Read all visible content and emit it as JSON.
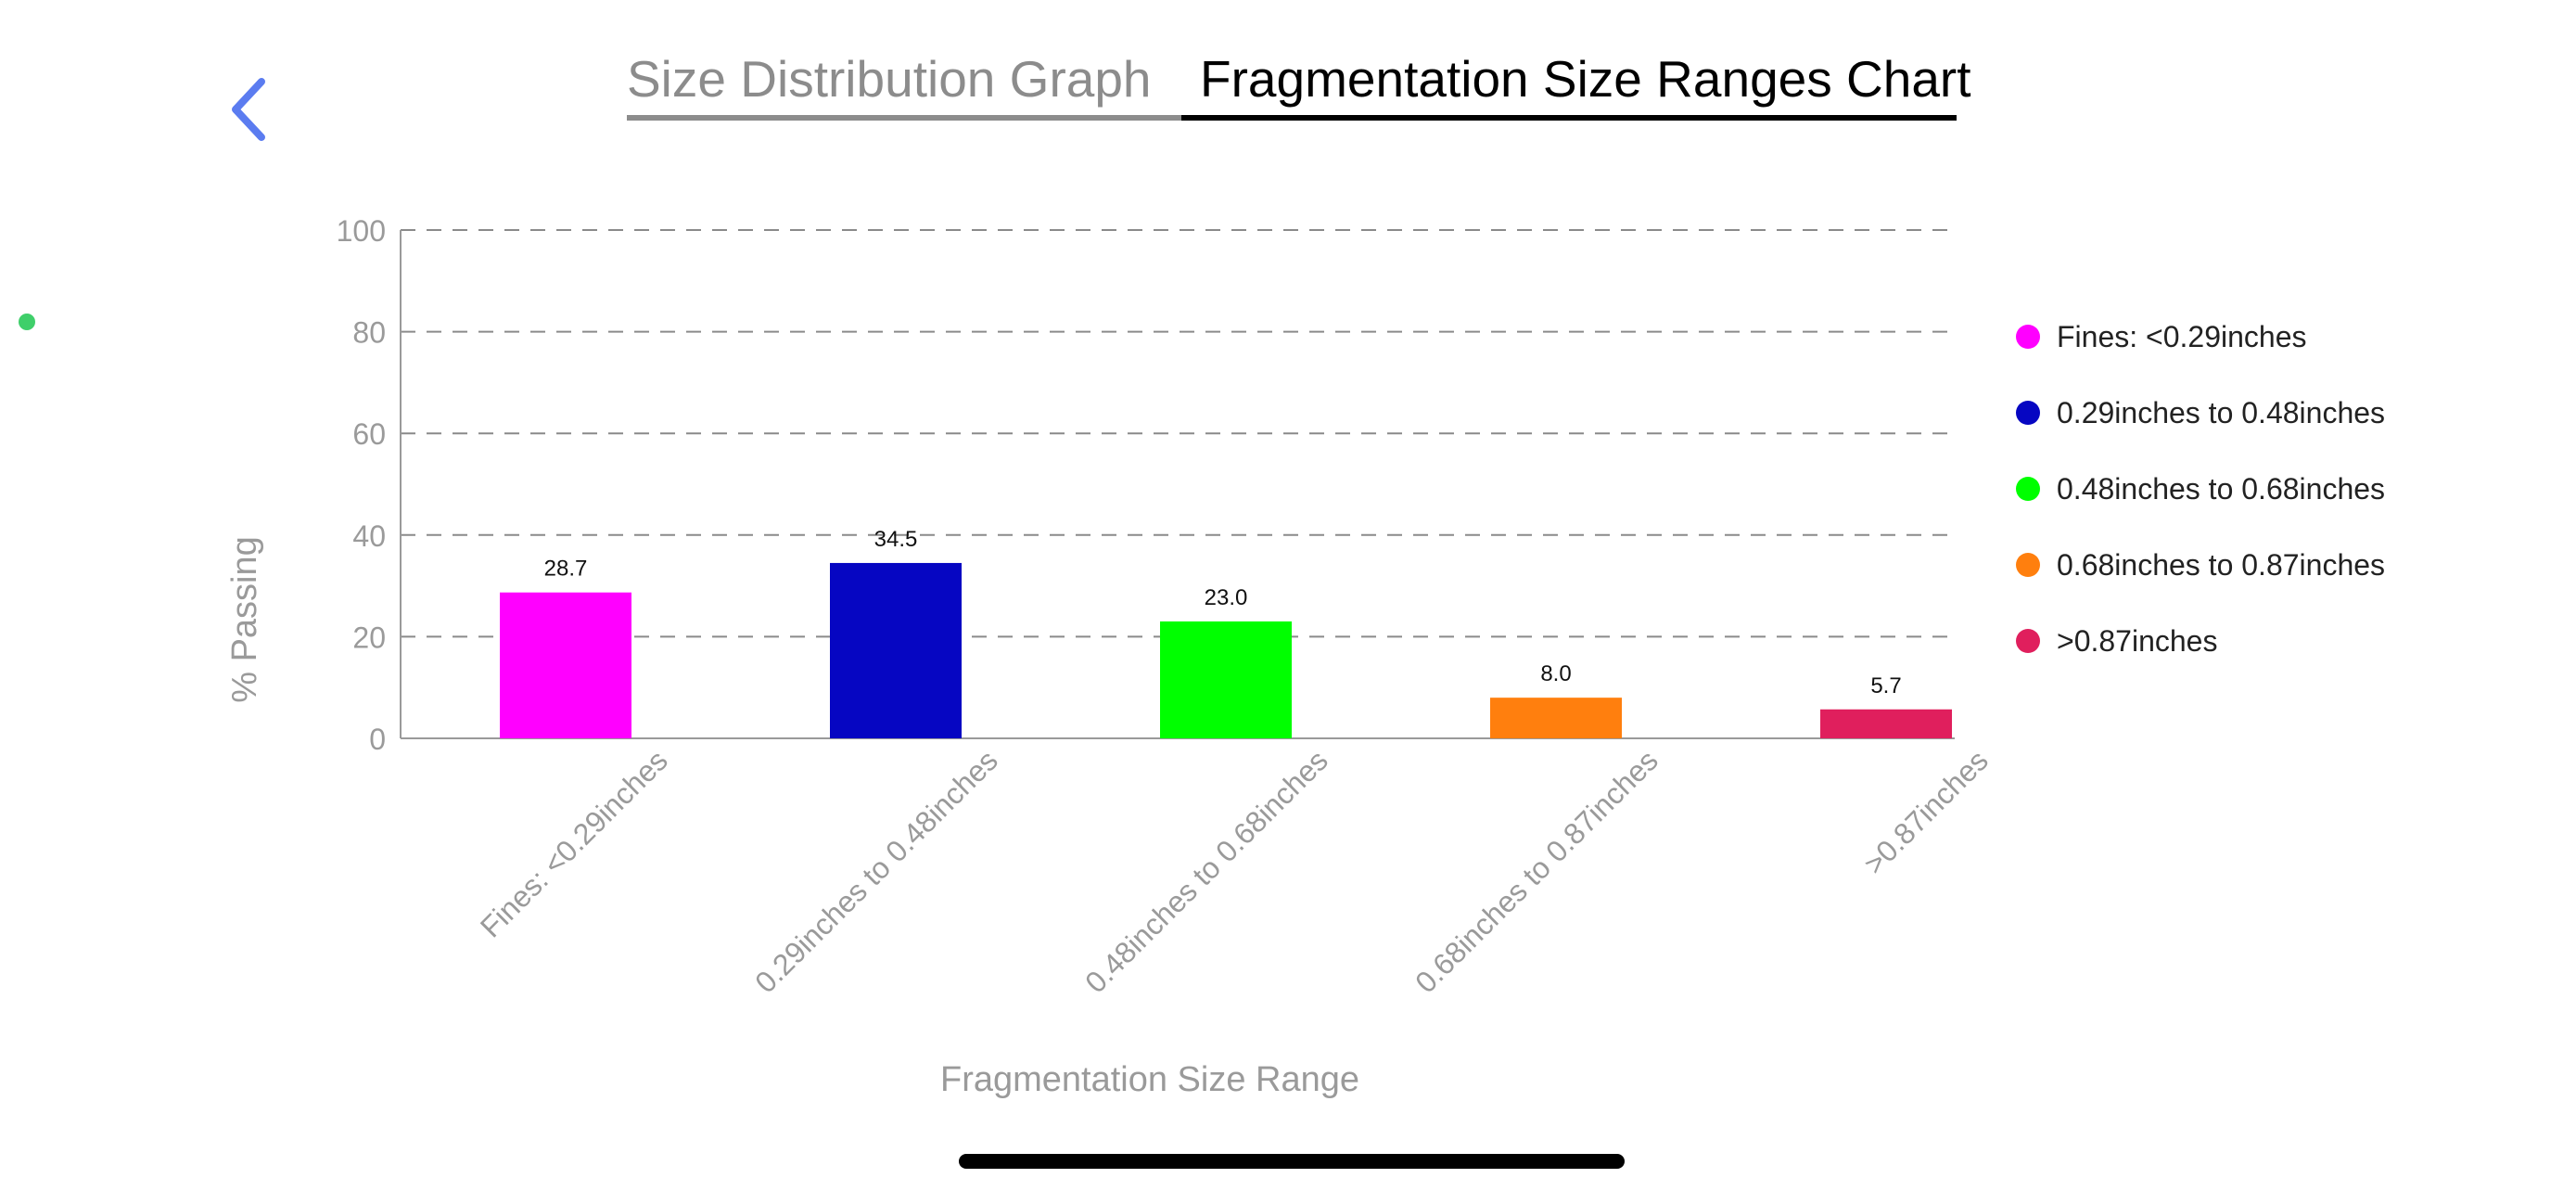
{
  "header": {
    "tabs": [
      {
        "label": "Size Distribution Graph",
        "active": false
      },
      {
        "label": "Fragmentation Size Ranges Chart",
        "active": true
      }
    ]
  },
  "icons": {
    "back": "chevron-left-icon",
    "status": "status-dot-icon"
  },
  "colors": {
    "back_button": "#5b7cf0",
    "status_dot": "#3fcf6a",
    "axis_text": "#9a9a9a"
  },
  "chart_data": {
    "type": "bar",
    "categories": [
      "Fines: <0.29inches",
      "0.29inches to 0.48inches",
      "0.48inches to 0.68inches",
      "0.68inches to 0.87inches",
      ">0.87inches"
    ],
    "values": [
      28.7,
      34.5,
      23.0,
      8.0,
      5.7
    ],
    "value_labels": [
      "28.7",
      "34.5",
      "23.0",
      "8.0",
      "5.7"
    ],
    "colors": [
      "#ff00ff",
      "#0606c2",
      "#00ff00",
      "#ff7f0e",
      "#e01f5d"
    ],
    "xlabel": "Fragmentation Size Range",
    "ylabel": "% Passing",
    "ylim": [
      0,
      100
    ],
    "yticks": [
      0,
      20,
      40,
      60,
      80,
      100
    ],
    "ytick_labels": [
      "0",
      "20",
      "40",
      "60",
      "80",
      "100"
    ],
    "grid": true,
    "legend_position": "right"
  }
}
